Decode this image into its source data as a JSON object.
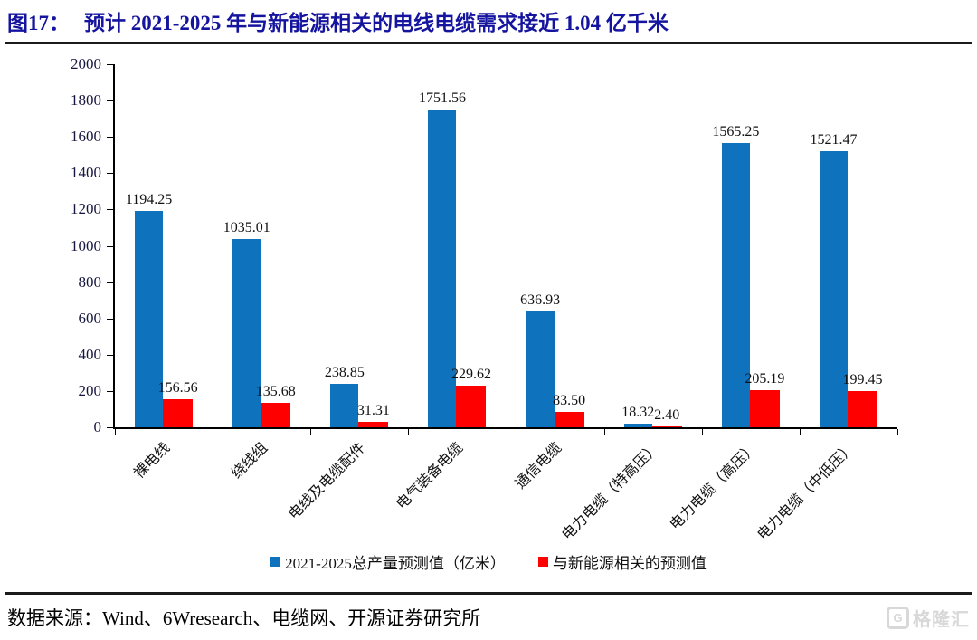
{
  "header": {
    "figure_label": "图17：",
    "title": "预计 2021-2025 年与新能源相关的电线电缆需求接近 1.04 亿千米"
  },
  "chart_data": {
    "type": "bar",
    "categories": [
      "裸电线",
      "绕线组",
      "电线及电缆配件",
      "电气装备电缆",
      "通信电缆",
      "电力电缆（特高压）",
      "电力电缆（高压）",
      "电力电缆（中低压）"
    ],
    "series": [
      {
        "name": "2021-2025总产量预测值（亿米）",
        "color": "#0e72bc",
        "values": [
          1194.25,
          1035.01,
          238.85,
          1751.56,
          636.93,
          18.32,
          1565.25,
          1521.47
        ]
      },
      {
        "name": "与新能源相关的预测值",
        "color": "#fe0000",
        "values": [
          156.56,
          135.68,
          31.31,
          229.62,
          83.5,
          2.4,
          205.19,
          199.45
        ]
      }
    ],
    "title": "预计 2021-2025 年与新能源相关的电线电缆需求接近 1.04 亿千米",
    "xlabel": "",
    "ylabel": "",
    "ylim": [
      0,
      2000
    ],
    "ytick_step": 200,
    "grid": false,
    "legend_position": "bottom",
    "value_label_decimals": 2
  },
  "footer": {
    "source": "数据来源：Wind、6Wresearch、电缆网、开源证券研究所"
  },
  "watermark": {
    "icon": "G",
    "text": "格隆汇"
  },
  "colors": {
    "title": "#14149e",
    "bar_blue": "#0e72bc",
    "bar_red": "#fe0000",
    "axis": "#000000",
    "watermark_gray": "#d8d8d8"
  }
}
